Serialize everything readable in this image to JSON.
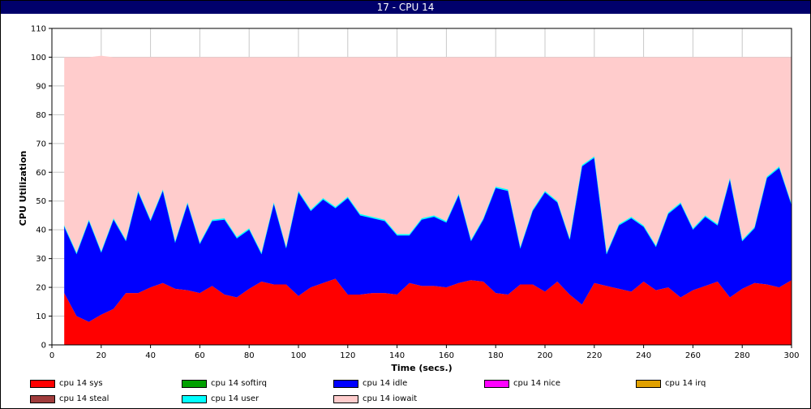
{
  "window": {
    "title": "17 - CPU 14"
  },
  "chart_data": {
    "type": "area",
    "stacked": true,
    "xlabel": "Time (secs.)",
    "ylabel": "CPU Utilization",
    "xlim": [
      0,
      300
    ],
    "ylim": [
      0,
      110
    ],
    "xticks": [
      0,
      20,
      40,
      60,
      80,
      100,
      120,
      140,
      160,
      180,
      200,
      220,
      240,
      260,
      280,
      300
    ],
    "yticks": [
      0,
      10,
      20,
      30,
      40,
      50,
      60,
      70,
      80,
      90,
      100,
      110
    ],
    "grid": true,
    "legend_position": "bottom",
    "x": [
      5,
      10,
      15,
      20,
      25,
      30,
      35,
      40,
      45,
      50,
      55,
      60,
      65,
      70,
      75,
      80,
      85,
      90,
      95,
      100,
      105,
      110,
      115,
      120,
      125,
      130,
      135,
      140,
      145,
      150,
      155,
      160,
      165,
      170,
      175,
      180,
      185,
      190,
      195,
      200,
      205,
      210,
      215,
      220,
      225,
      230,
      235,
      240,
      245,
      250,
      255,
      260,
      265,
      270,
      275,
      280,
      285,
      290,
      295,
      300
    ],
    "series": [
      {
        "name": "cpu 14 sys",
        "color": "#ff0000",
        "values": [
          18,
          10,
          8,
          10.5,
          12.5,
          18,
          18,
          20,
          21.5,
          19.5,
          19,
          18,
          20.5,
          17.5,
          16.5,
          19.5,
          22,
          21,
          21,
          17,
          20,
          21.5,
          23,
          17.5,
          17.5,
          18,
          18,
          17.5,
          21.5,
          20.5,
          20.5,
          20,
          21.5,
          22.5,
          22,
          18,
          17.5,
          21,
          21,
          18.5,
          22,
          17.5,
          14,
          21.5,
          20.5,
          19.5,
          18.5,
          22,
          19,
          20,
          16.5,
          19,
          20.5,
          22,
          16.5,
          19.5,
          21.5,
          21,
          20,
          22.5
        ]
      },
      {
        "name": "cpu 14 softirq",
        "color": "#00a000",
        "values": [
          0,
          0,
          0,
          0,
          0,
          0,
          0,
          0,
          0,
          0,
          0,
          0,
          0,
          0,
          0,
          0,
          0,
          0,
          0,
          0,
          0,
          0,
          0,
          0,
          0,
          0,
          0,
          0,
          0,
          0,
          0,
          0,
          0,
          0,
          0,
          0,
          0,
          0,
          0,
          0,
          0,
          0,
          0,
          0,
          0,
          0,
          0,
          0,
          0,
          0,
          0,
          0,
          0,
          0,
          0,
          0,
          0,
          0,
          0,
          0
        ]
      },
      {
        "name": "cpu 14 idle",
        "color": "#0000ff",
        "values": [
          23,
          21.5,
          35,
          21.5,
          31,
          18,
          35,
          23,
          32,
          16,
          30,
          17,
          22.5,
          26,
          20.5,
          20.5,
          9.5,
          28,
          12.5,
          36,
          26.5,
          29,
          24.5,
          33.5,
          27.5,
          26,
          25,
          20.5,
          16.5,
          23,
          24,
          22.5,
          30.5,
          13.5,
          21.5,
          36.5,
          36,
          12.5,
          25.5,
          34.5,
          27.5,
          19,
          48,
          43.5,
          11,
          22,
          25.5,
          19,
          15,
          25.5,
          32.5,
          21,
          24,
          19.5,
          41,
          16.5,
          19,
          37,
          41.5,
          26
        ]
      },
      {
        "name": "cpu 14 nice",
        "color": "#ff00ff",
        "values": [
          0,
          0,
          0,
          0,
          0,
          0,
          0,
          0,
          0,
          0,
          0,
          0,
          0,
          0,
          0,
          0,
          0,
          0,
          0,
          0,
          0,
          0,
          0,
          0,
          0,
          0,
          0,
          0,
          0,
          0,
          0,
          0,
          0,
          0,
          0,
          0,
          0,
          0,
          0,
          0,
          0,
          0,
          0,
          0,
          0,
          0,
          0,
          0,
          0,
          0,
          0,
          0,
          0,
          0,
          0,
          0,
          0,
          0,
          0,
          0
        ]
      },
      {
        "name": "cpu 14 irq",
        "color": "#e0a000",
        "values": [
          0,
          0,
          0,
          0,
          0,
          0,
          0,
          0,
          0,
          0,
          0,
          0,
          0,
          0,
          0,
          0,
          0,
          0,
          0,
          0,
          0,
          0,
          0,
          0,
          0,
          0,
          0,
          0,
          0,
          0,
          0,
          0,
          0,
          0,
          0,
          0,
          0,
          0,
          0,
          0,
          0,
          0,
          0,
          0,
          0,
          0,
          0,
          0,
          0,
          0,
          0,
          0,
          0,
          0,
          0,
          0,
          0,
          0,
          0,
          0
        ]
      },
      {
        "name": "cpu 14 steal",
        "color": "#a03c3c",
        "values": [
          0,
          0,
          0,
          0,
          0,
          0,
          0,
          0,
          0,
          0,
          0,
          0,
          0,
          0,
          0,
          0,
          0,
          0,
          0,
          0,
          0,
          0,
          0,
          0,
          0,
          0,
          0,
          0,
          0,
          0,
          0,
          0,
          0,
          0,
          0,
          0,
          0,
          0,
          0,
          0,
          0,
          0,
          0,
          0,
          0,
          0,
          0,
          0,
          0,
          0,
          0,
          0,
          0,
          0,
          0,
          0,
          0,
          0,
          0,
          0
        ]
      },
      {
        "name": "cpu 14 user",
        "color": "#00ffff",
        "values": [
          0.5,
          0.5,
          0.5,
          0.5,
          0.5,
          0.5,
          0.5,
          0.5,
          0.5,
          0.5,
          0.5,
          0.5,
          0.5,
          0.5,
          0.5,
          0.5,
          0.5,
          0.5,
          0.5,
          0.5,
          0.5,
          0.5,
          0.5,
          0.5,
          0.5,
          0.5,
          0.5,
          0.5,
          0.5,
          0.5,
          0.5,
          0.5,
          0.5,
          0.5,
          0.5,
          0.5,
          0.5,
          0.5,
          0.5,
          0.5,
          0.5,
          0.5,
          0.5,
          0.5,
          0.5,
          0.5,
          0.5,
          0.5,
          0.5,
          0.5,
          0.5,
          0.5,
          0.5,
          0.5,
          0.5,
          0.5,
          0.5,
          0.5,
          0.5,
          0.5
        ]
      },
      {
        "name": "cpu 14 iowait",
        "color": "#ffcccc",
        "values": [
          58.5,
          68,
          56.5,
          68,
          56,
          63.5,
          46.5,
          56.5,
          46,
          64,
          50.5,
          64.5,
          56.5,
          56,
          62.5,
          59.5,
          68,
          50.5,
          66,
          46.5,
          53,
          49,
          52,
          48.5,
          54.5,
          55.5,
          56.5,
          61.5,
          61.5,
          56,
          55,
          57,
          47.5,
          63.5,
          56,
          45,
          46,
          66,
          53,
          46.5,
          50,
          63,
          37.5,
          34.5,
          68,
          58,
          55.5,
          58.5,
          65.5,
          54,
          50.5,
          59.5,
          55,
          58,
          42,
          63.5,
          59,
          41.5,
          38,
          51
        ]
      }
    ]
  }
}
